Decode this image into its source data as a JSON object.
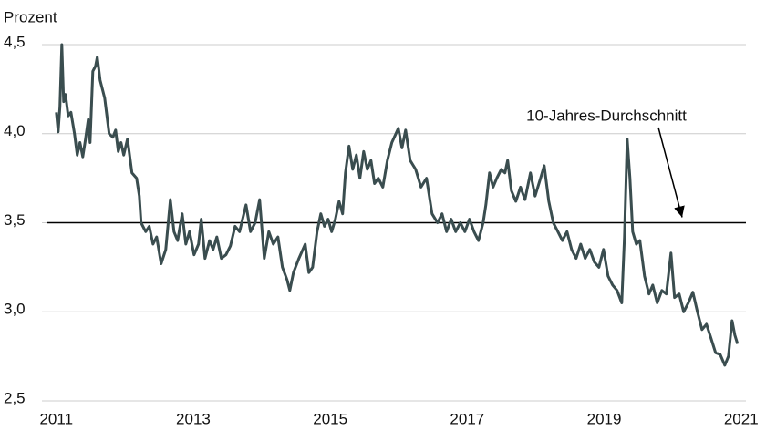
{
  "chart_data": {
    "type": "line",
    "y_label": "Prozent",
    "color": "#3a4d4f",
    "x": [
      2011.0,
      2011.027,
      2011.053,
      2011.08,
      2011.107,
      2011.133,
      2011.173,
      2011.213,
      2011.266,
      2011.306,
      2011.346,
      2011.386,
      2011.426,
      2011.466,
      2011.493,
      2011.533,
      2011.573,
      2011.599,
      2011.639,
      2011.706,
      2011.772,
      2011.826,
      2011.866,
      2011.905,
      2011.945,
      2011.985,
      2012.039,
      2012.105,
      2012.172,
      2012.212,
      2012.238,
      2012.305,
      2012.358,
      2012.412,
      2012.465,
      2012.531,
      2012.598,
      2012.665,
      2012.718,
      2012.771,
      2012.838,
      2012.891,
      2012.944,
      2013.011,
      2013.077,
      2013.117,
      2013.171,
      2013.237,
      2013.29,
      2013.344,
      2013.41,
      2013.477,
      2013.543,
      2013.61,
      2013.676,
      2013.77,
      2013.836,
      2013.903,
      2013.969,
      2014.036,
      2014.103,
      2014.169,
      2014.236,
      2014.302,
      2014.369,
      2014.409,
      2014.462,
      2014.542,
      2014.635,
      2014.688,
      2014.742,
      2014.808,
      2014.862,
      2014.915,
      2014.968,
      2015.021,
      2015.075,
      2015.128,
      2015.181,
      2015.221,
      2015.274,
      2015.328,
      2015.381,
      2015.434,
      2015.488,
      2015.541,
      2015.594,
      2015.647,
      2015.701,
      2015.767,
      2015.834,
      2015.9,
      2015.994,
      2016.047,
      2016.1,
      2016.167,
      2016.247,
      2016.326,
      2016.406,
      2016.486,
      2016.566,
      2016.633,
      2016.699,
      2016.766,
      2016.832,
      2016.899,
      2016.966,
      2017.032,
      2017.099,
      2017.165,
      2017.232,
      2017.272,
      2017.325,
      2017.378,
      2017.432,
      2017.498,
      2017.551,
      2017.591,
      2017.645,
      2017.711,
      2017.778,
      2017.844,
      2017.924,
      2017.991,
      2018.071,
      2018.124,
      2018.191,
      2018.257,
      2018.324,
      2018.39,
      2018.457,
      2018.524,
      2018.59,
      2018.657,
      2018.723,
      2018.79,
      2018.856,
      2018.923,
      2018.99,
      2019.056,
      2019.123,
      2019.189,
      2019.256,
      2019.296,
      2019.336,
      2019.376,
      2019.416,
      2019.469,
      2019.522,
      2019.589,
      2019.655,
      2019.709,
      2019.775,
      2019.842,
      2019.908,
      2019.975,
      2020.028,
      2020.095,
      2020.161,
      2020.228,
      2020.295,
      2020.361,
      2020.428,
      2020.494,
      2020.561,
      2020.627,
      2020.694,
      2020.761,
      2020.814,
      2020.867,
      2020.907,
      2020.947
    ],
    "values": [
      4.12,
      4.01,
      4.15,
      4.5,
      4.18,
      4.22,
      4.1,
      4.12,
      4.0,
      3.88,
      3.95,
      3.87,
      3.97,
      4.08,
      3.95,
      4.35,
      4.38,
      4.43,
      4.3,
      4.2,
      4.0,
      3.98,
      4.02,
      3.9,
      3.95,
      3.88,
      3.97,
      3.78,
      3.75,
      3.65,
      3.5,
      3.45,
      3.48,
      3.38,
      3.42,
      3.27,
      3.35,
      3.63,
      3.45,
      3.4,
      3.55,
      3.38,
      3.45,
      3.32,
      3.38,
      3.52,
      3.3,
      3.4,
      3.35,
      3.42,
      3.3,
      3.32,
      3.37,
      3.48,
      3.45,
      3.6,
      3.45,
      3.5,
      3.63,
      3.3,
      3.45,
      3.38,
      3.42,
      3.25,
      3.18,
      3.12,
      3.22,
      3.3,
      3.38,
      3.22,
      3.25,
      3.45,
      3.55,
      3.48,
      3.52,
      3.45,
      3.52,
      3.62,
      3.55,
      3.78,
      3.93,
      3.8,
      3.88,
      3.75,
      3.9,
      3.8,
      3.85,
      3.72,
      3.75,
      3.7,
      3.85,
      3.95,
      4.03,
      3.92,
      4.02,
      3.85,
      3.8,
      3.7,
      3.75,
      3.55,
      3.5,
      3.55,
      3.45,
      3.52,
      3.45,
      3.5,
      3.45,
      3.52,
      3.45,
      3.4,
      3.5,
      3.6,
      3.78,
      3.7,
      3.75,
      3.8,
      3.78,
      3.85,
      3.68,
      3.62,
      3.7,
      3.63,
      3.78,
      3.65,
      3.75,
      3.82,
      3.62,
      3.5,
      3.45,
      3.4,
      3.45,
      3.35,
      3.3,
      3.38,
      3.3,
      3.35,
      3.28,
      3.25,
      3.35,
      3.2,
      3.15,
      3.12,
      3.05,
      3.42,
      3.97,
      3.75,
      3.45,
      3.38,
      3.4,
      3.2,
      3.1,
      3.15,
      3.05,
      3.12,
      3.1,
      3.33,
      3.08,
      3.1,
      3.0,
      3.05,
      3.11,
      3.0,
      2.9,
      2.93,
      2.85,
      2.77,
      2.76,
      2.7,
      2.75,
      2.95,
      2.87,
      2.82
    ],
    "xlim": [
      2010.87,
      2021.07
    ],
    "xticks": [
      2011,
      2013,
      2015,
      2017,
      2019,
      2021
    ],
    "ylim": [
      2.5,
      4.5
    ],
    "yticks": [
      {
        "value": 2.5,
        "label": "2,5"
      },
      {
        "value": 3.0,
        "label": "3,0"
      },
      {
        "value": 3.5,
        "label": "3,5"
      },
      {
        "value": 4.0,
        "label": "4,0"
      },
      {
        "value": 4.5,
        "label": "4,5"
      }
    ],
    "grid": true,
    "reference_line": {
      "value": 3.5,
      "label": "10-Jahres-Durchschnitt",
      "color": "#000000"
    }
  }
}
